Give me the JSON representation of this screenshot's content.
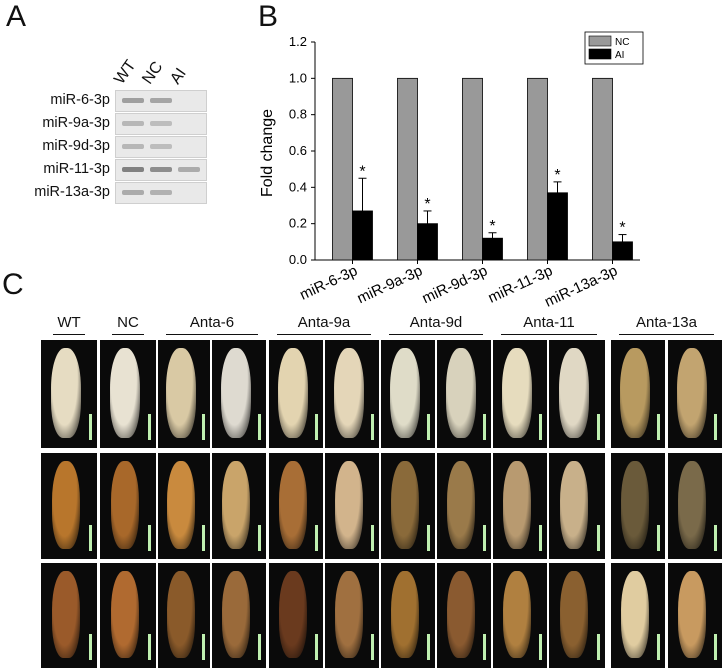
{
  "panel_a": {
    "letter": "A",
    "lanes": [
      "WT",
      "NC",
      "AI"
    ],
    "rows": [
      {
        "label": "miR-6-3p",
        "bands": [
          0.55,
          0.5,
          0.0
        ]
      },
      {
        "label": "miR-9a-3p",
        "bands": [
          0.35,
          0.3,
          0.0
        ]
      },
      {
        "label": "miR-9d-3p",
        "bands": [
          0.35,
          0.3,
          0.0
        ]
      },
      {
        "label": "miR-11-3p",
        "bands": [
          0.8,
          0.7,
          0.45
        ]
      },
      {
        "label": "miR-13a-3p",
        "bands": [
          0.45,
          0.4,
          0.0
        ]
      }
    ]
  },
  "panel_b": {
    "letter": "B"
  },
  "chart_data": {
    "type": "bar",
    "categories": [
      "miR-6-3p",
      "miR-9a-3p",
      "miR-9d-3p",
      "miR-11-3p",
      "miR-13a-3p"
    ],
    "series": [
      {
        "name": "NC",
        "values": [
          1.0,
          1.0,
          1.0,
          1.0,
          1.0
        ],
        "color": "#999999"
      },
      {
        "name": "AI",
        "values": [
          0.27,
          0.2,
          0.12,
          0.37,
          0.1
        ],
        "errors": [
          0.18,
          0.07,
          0.03,
          0.06,
          0.04
        ],
        "color": "#000000"
      }
    ],
    "significance": [
      "*",
      "*",
      "*",
      "*",
      "*"
    ],
    "title": "",
    "xlabel": "",
    "ylabel": "Fold change",
    "ylim": [
      0,
      1.2
    ],
    "yticks": [
      "0.0",
      "0.2",
      "0.4",
      "0.6",
      "0.8",
      "1.0",
      "1.2"
    ],
    "legend": "top-right",
    "grid": false
  },
  "panel_c": {
    "letter": "C",
    "groups": [
      {
        "label": "WT",
        "cols": 1
      },
      {
        "label": "NC",
        "cols": 1
      },
      {
        "label": "Anta-6",
        "cols": 2
      },
      {
        "label": "Anta-9a",
        "cols": 2
      },
      {
        "label": "Anta-9d",
        "cols": 2
      },
      {
        "label": "Anta-11",
        "cols": 2
      },
      {
        "label": "Anta-13a",
        "cols": 2
      }
    ],
    "rows": [
      {
        "colors": [
          "#e6dcc2",
          "#e8e2d2",
          "#d9c9a4",
          "#dedad0",
          "#e3d4b0",
          "#e4d6b8",
          "#dfdcc8",
          "#d8d2bc",
          "#e6dcbe",
          "#e0d8c4",
          "#b89a60",
          "#c2a470"
        ]
      },
      {
        "colors": [
          "#b8762c",
          "#a8682a",
          "#c98a3e",
          "#c9a46a",
          "#a86e36",
          "#d2b48c",
          "#8a6a3a",
          "#9a7a4a",
          "#b89a70",
          "#c8b08a",
          "#6a5a3a",
          "#7a6a4a"
        ]
      },
      {
        "colors": [
          "#9a5a2a",
          "#b06a30",
          "#8a5a2a",
          "#9a6a3a",
          "#6a3a1e",
          "#a07040",
          "#a07030",
          "#8a5a30",
          "#b08040",
          "#8a6030",
          "#e0cca0",
          "#c89a60"
        ]
      }
    ]
  }
}
